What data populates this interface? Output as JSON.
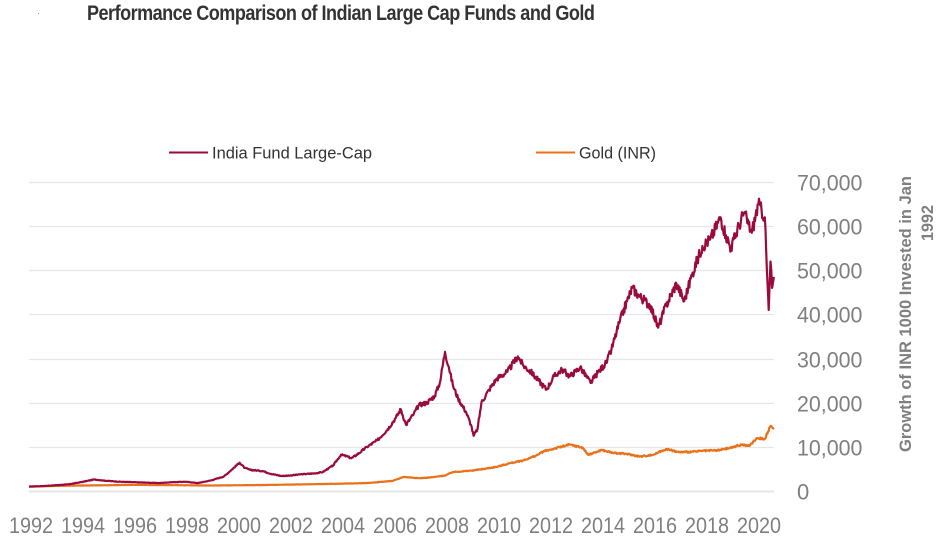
{
  "chart_data": {
    "type": "line",
    "title": "Performance Comparison of Indian Large Cap Funds and Gold",
    "xlabel": "",
    "ylabel_lines": [
      "Growth of INR 1000 Invested in Jan",
      "1992"
    ],
    "ylabel": "Growth of INR 1000 Invested in Jan 1992",
    "y_axis_side": "right",
    "xlim": [
      1992,
      2020.7
    ],
    "ylim": [
      0,
      70000
    ],
    "x_ticks": [
      1992,
      1994,
      1996,
      1998,
      2000,
      2002,
      2004,
      2006,
      2008,
      2010,
      2012,
      2014,
      2016,
      2018,
      2020
    ],
    "x_tick_labels": [
      "1992",
      "1994",
      "1996",
      "1998",
      "2000",
      "2002",
      "2004",
      "2006",
      "2008",
      "2010",
      "2012",
      "2014",
      "2016",
      "2018",
      "2020"
    ],
    "y_ticks": [
      0,
      10000,
      20000,
      30000,
      40000,
      50000,
      60000,
      70000
    ],
    "y_tick_labels": [
      "0",
      "10,000",
      "20,000",
      "30,000",
      "40,000",
      "50,000",
      "60,000",
      "70,000"
    ],
    "grid": "horizontal",
    "legend_position": "top",
    "series": [
      {
        "name": "India Fund Large-Cap",
        "color": "#9b0a3c",
        "x": [
          1992.0,
          1992.5,
          1993.0,
          1993.5,
          1994.0,
          1994.5,
          1995.0,
          1995.5,
          1996.0,
          1996.5,
          1997.0,
          1997.5,
          1998.0,
          1998.5,
          1999.0,
          1999.5,
          2000.1,
          2000.3,
          2000.5,
          2001.0,
          2001.3,
          2001.7,
          2002.0,
          2002.5,
          2003.0,
          2003.3,
          2003.7,
          2004.0,
          2004.2,
          2004.4,
          2004.7,
          2005.0,
          2005.4,
          2005.8,
          2006.1,
          2006.3,
          2006.5,
          2006.8,
          2007.0,
          2007.3,
          2007.6,
          2007.8,
          2008.0,
          2008.15,
          2008.3,
          2008.5,
          2008.8,
          2009.0,
          2009.1,
          2009.25,
          2009.4,
          2009.7,
          2010.0,
          2010.4,
          2010.8,
          2011.0,
          2011.3,
          2011.6,
          2011.9,
          2012.2,
          2012.5,
          2012.8,
          2013.2,
          2013.6,
          2013.9,
          2014.2,
          2014.4,
          2014.7,
          2015.0,
          2015.2,
          2015.5,
          2015.9,
          2016.2,
          2016.5,
          2016.9,
          2017.2,
          2017.5,
          2017.9,
          2018.2,
          2018.6,
          2018.8,
          2019.0,
          2019.3,
          2019.5,
          2019.8,
          2020.05,
          2020.3,
          2020.38,
          2020.45,
          2020.52,
          2020.58,
          2020.65
        ],
        "y": [
          1000,
          1100,
          1300,
          1500,
          2000,
          2600,
          2300,
          2100,
          2000,
          1900,
          1800,
          2000,
          2100,
          1800,
          2400,
          3300,
          6400,
          5200,
          4800,
          4500,
          3900,
          3400,
          3500,
          3800,
          4000,
          4300,
          5800,
          8200,
          7900,
          7400,
          8600,
          10000,
          11500,
          14000,
          16500,
          18500,
          15000,
          17500,
          19500,
          20000,
          21500,
          24500,
          31500,
          28000,
          24000,
          21000,
          18000,
          15000,
          12500,
          14000,
          20000,
          23000,
          25500,
          27000,
          30500,
          28500,
          27000,
          25000,
          23000,
          26000,
          27500,
          26000,
          28000,
          24500,
          27000,
          29000,
          32000,
          38000,
          43000,
          46000,
          44000,
          42000,
          37000,
          42000,
          47000,
          43000,
          49000,
          55500,
          57000,
          62000,
          58000,
          55000,
          60000,
          63000,
          58500,
          65000,
          62000,
          50000,
          41000,
          52000,
          46000,
          48500
        ]
      },
      {
        "name": "Gold (INR)",
        "color": "#e8711a",
        "x": [
          1992.0,
          1993.0,
          1994.0,
          1995.0,
          1996.0,
          1997.0,
          1998.0,
          1999.0,
          2000.0,
          2001.0,
          2002.0,
          2003.0,
          2004.0,
          2005.0,
          2006.0,
          2006.4,
          2007.0,
          2007.5,
          2008.0,
          2008.3,
          2009.0,
          2009.5,
          2010.0,
          2010.5,
          2011.0,
          2011.5,
          2011.8,
          2012.2,
          2012.8,
          2013.3,
          2013.5,
          2013.9,
          2014.0,
          2014.5,
          2015.0,
          2015.5,
          2016.0,
          2016.5,
          2017.0,
          2017.5,
          2018.0,
          2018.5,
          2019.0,
          2019.4,
          2019.7,
          2020.0,
          2020.3,
          2020.5,
          2020.65
        ],
        "y": [
          1000,
          1150,
          1250,
          1300,
          1400,
          1350,
          1300,
          1250,
          1300,
          1350,
          1450,
          1550,
          1650,
          1800,
          2300,
          3200,
          2900,
          3100,
          3500,
          4300,
          4600,
          5000,
          5500,
          6300,
          6900,
          8000,
          9000,
          9600,
          10500,
          9800,
          8200,
          9000,
          9300,
          8600,
          8400,
          7800,
          8200,
          9500,
          8800,
          8900,
          9100,
          9200,
          9800,
          10500,
          10200,
          12000,
          11800,
          14500,
          14300
        ]
      }
    ]
  }
}
